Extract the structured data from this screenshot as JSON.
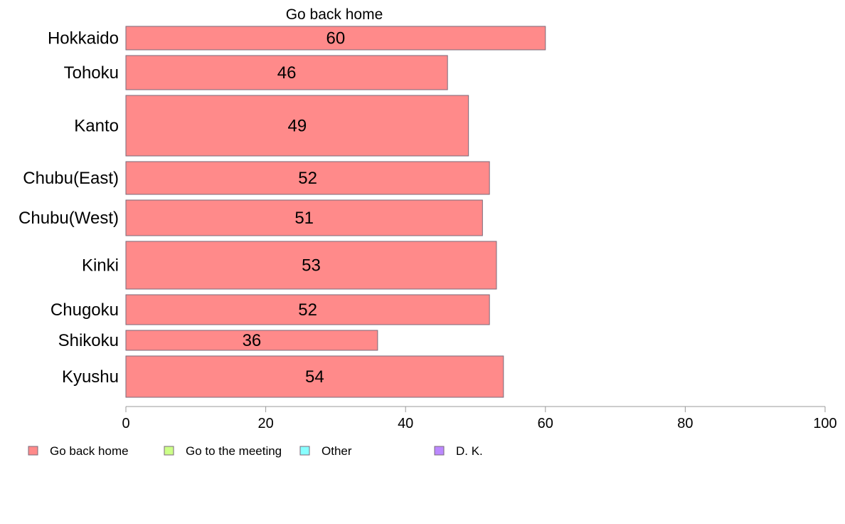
{
  "chart_data": {
    "type": "bar",
    "orientation": "horizontal",
    "title": "Go back home",
    "categories": [
      "Hokkaido",
      "Tohoku",
      "Kanto",
      "Chubu(East)",
      "Chubu(West)",
      "Kinki",
      "Chugoku",
      "Shikoku",
      "Kyushu"
    ],
    "series": [
      {
        "name": "Go back home",
        "values": [
          60,
          46,
          49,
          52,
          51,
          53,
          52,
          36,
          54
        ],
        "color": "#ff8a8a"
      }
    ],
    "xlim": [
      0,
      100
    ],
    "xticks": [
      "0",
      "20",
      "40",
      "60",
      "80",
      "100"
    ],
    "xlabel": "",
    "ylabel": "",
    "grid": false,
    "legend": {
      "placement": "bottom",
      "entries": [
        {
          "label": "Go back home",
          "color": "#ff8a8a"
        },
        {
          "label": "Go to the meeting",
          "color": "#ccff88"
        },
        {
          "label": "Other",
          "color": "#88ffff"
        },
        {
          "label": "D. K.",
          "color": "#bb88ff"
        }
      ]
    }
  }
}
